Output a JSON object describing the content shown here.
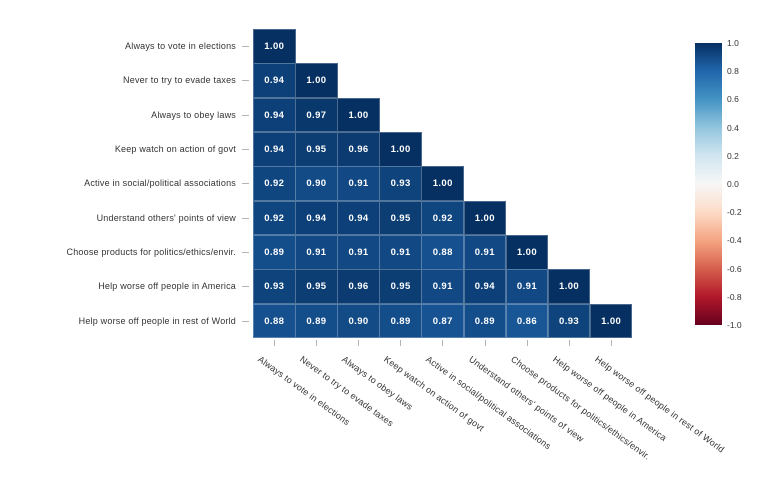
{
  "figure": {
    "background": "#ffffff"
  },
  "chart_data": {
    "type": "heatmap",
    "subtype": "correlation-matrix-lower-triangle",
    "title": "",
    "variables": [
      "Always to vote in elections",
      "Never to try to evade taxes",
      "Always to obey laws",
      "Keep watch on action of govt",
      "Active in social/political associations",
      "Understand others' points of view",
      "Choose products for politics/ethics/envir.",
      "Help worse off people in America",
      "Help worse off people in rest of World"
    ],
    "matrix": [
      [
        1.0
      ],
      [
        0.94,
        1.0
      ],
      [
        0.94,
        0.97,
        1.0
      ],
      [
        0.94,
        0.95,
        0.96,
        1.0
      ],
      [
        0.92,
        0.9,
        0.91,
        0.93,
        1.0
      ],
      [
        0.92,
        0.94,
        0.94,
        0.95,
        0.92,
        1.0
      ],
      [
        0.89,
        0.91,
        0.91,
        0.91,
        0.88,
        0.91,
        1.0
      ],
      [
        0.93,
        0.95,
        0.96,
        0.95,
        0.91,
        0.94,
        0.91,
        1.0
      ],
      [
        0.88,
        0.89,
        0.9,
        0.89,
        0.87,
        0.89,
        0.86,
        0.93,
        1.0
      ]
    ],
    "value_decimals": 2,
    "vmin": -1.0,
    "vmax": 1.0,
    "colorbar_ticks": [
      "1.0",
      "0.8",
      "0.6",
      "0.4",
      "0.2",
      "0.0",
      "-0.2",
      "-0.4",
      "-0.6",
      "-0.8",
      "-1.0"
    ],
    "colormap_name": "RdBu",
    "colormap_stops": [
      "#67001f",
      "#b2182b",
      "#d6604d",
      "#f4a582",
      "#fddbc7",
      "#f7f7f7",
      "#d1e5f0",
      "#92c5de",
      "#4393c3",
      "#2166ac",
      "#053061"
    ],
    "colors": {
      "cell_text": "#ffffff",
      "axis_label": "#333333",
      "tick_mark": "#b3b3b3",
      "colorbar_label": "#333333"
    },
    "legend_position": "right",
    "grid": false
  }
}
